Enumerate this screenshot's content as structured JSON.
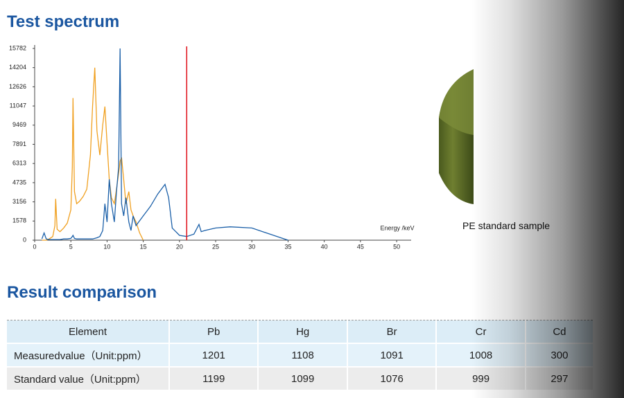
{
  "header": {
    "title": "Test spectrum"
  },
  "chart_data": {
    "type": "line",
    "x_label": "Energy /keV",
    "x": [
      1,
      1.3,
      1.6,
      2,
      2.5,
      2.8,
      2.9,
      3.1,
      3.5,
      4,
      4.5,
      5,
      5.2,
      5.3,
      5.5,
      5.8,
      6.2,
      6.7,
      7.2,
      7.7,
      8,
      8.3,
      8.6,
      9,
      9.4,
      9.7,
      10,
      10.3,
      10.6,
      11,
      11.3,
      11.6,
      11.8,
      12,
      12.3,
      12.6,
      13,
      13.3,
      13.6,
      14,
      14.5,
      15,
      15.5,
      16,
      17,
      18,
      18.5,
      19,
      20,
      21,
      22,
      22.7,
      23,
      23.5,
      25,
      27,
      30,
      32,
      34,
      35
    ],
    "series": [
      {
        "color": "#f0a020",
        "values": [
          0,
          0,
          0,
          100,
          300,
          1200,
          3400,
          900,
          700,
          1000,
          1400,
          2500,
          6000,
          11700,
          4000,
          3000,
          3200,
          3600,
          4200,
          7000,
          11000,
          14200,
          9000,
          7000,
          9500,
          11000,
          8000,
          5000,
          3500,
          3000,
          4200,
          5500,
          6500,
          6800,
          5000,
          3000,
          4000,
          2500,
          2000,
          1500,
          600,
          0,
          null,
          null,
          null,
          null,
          null,
          null,
          null,
          null,
          null,
          null,
          null,
          null,
          null,
          null,
          null,
          null,
          null,
          null
        ]
      },
      {
        "color": "#1a5fa8",
        "values": [
          100,
          600,
          100,
          50,
          50,
          50,
          50,
          50,
          50,
          100,
          100,
          150,
          300,
          400,
          150,
          100,
          100,
          100,
          100,
          100,
          100,
          150,
          200,
          300,
          800,
          3000,
          1500,
          5000,
          3000,
          1500,
          4000,
          6000,
          15782,
          3000,
          2000,
          3500,
          1500,
          800,
          2000,
          1200,
          1600,
          2000,
          2400,
          2800,
          3800,
          4600,
          3500,
          1000,
          400,
          300,
          500,
          1300,
          700,
          800,
          1000,
          1100,
          1000,
          600,
          200,
          0
        ]
      }
    ],
    "vline": {
      "x": 21,
      "color": "#e0101a"
    },
    "xlim": [
      0,
      52
    ],
    "xticks": [
      0,
      5,
      10,
      15,
      20,
      25,
      30,
      35,
      40,
      45,
      50
    ],
    "ylim": [
      0,
      15782
    ],
    "yticks": [
      0,
      1578,
      3156,
      4735,
      6313,
      7891,
      9469,
      11047,
      12626,
      14204,
      15782
    ],
    "grid": false
  },
  "sample": {
    "caption": "PE standard sample"
  },
  "section": {
    "title": "Result comparison"
  },
  "table": {
    "header": [
      "Element",
      "Pb",
      "Hg",
      "Br",
      "Cr",
      "Cd"
    ],
    "rows": [
      [
        "Measuredvalue（Unit:ppm）",
        1201,
        1108,
        1091,
        1008,
        300
      ],
      [
        "Standard value（Unit:ppm）",
        1199,
        1099,
        1076,
        999,
        297
      ]
    ]
  }
}
